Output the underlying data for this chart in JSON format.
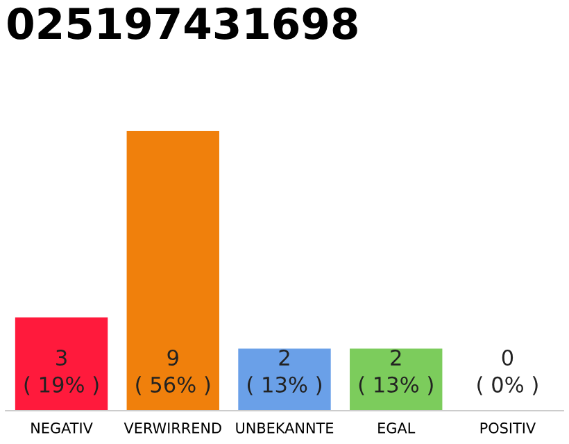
{
  "chart_data": {
    "type": "bar",
    "title": "025197431698",
    "categories": [
      "NEGATIV",
      "VERWIRREND",
      "UNBEKANNTE",
      "EGAL",
      "POSITIV"
    ],
    "values": [
      3,
      9,
      2,
      2,
      0
    ],
    "colors": [
      "#ff1a3c",
      "#f0800c",
      "#6aa0e8",
      "#7ccc5c",
      "#eeeeee"
    ],
    "value_labels": [
      "3\n( 19% )",
      "9\n( 56% )",
      "2\n( 13% )",
      "2\n( 13% )",
      "0\n( 0% )"
    ],
    "grid": false,
    "legend": false
  }
}
